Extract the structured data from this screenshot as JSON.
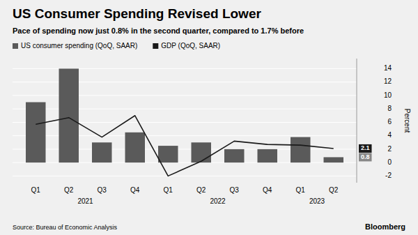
{
  "chart_data": {
    "type": "bar",
    "title": "US Consumer Spending Revised Lower",
    "subtitle": "Pace of spending now just 0.8% in the second quarter, compared to 1.7% before",
    "source": "Source: Bureau of Economic Analysis",
    "credit": "Bloomberg",
    "y_label": "Percent",
    "categories": [
      "Q1",
      "Q2",
      "Q3",
      "Q4",
      "Q1",
      "Q2",
      "Q3",
      "Q4",
      "Q1",
      "Q2"
    ],
    "x_group_labels": [
      "2021",
      "2022",
      "2023"
    ],
    "series": [
      {
        "name": "US consumer spending (QoQ, SAAR)",
        "type": "bar",
        "color": "#5a5a5a",
        "values": [
          9.0,
          14.0,
          3.0,
          4.5,
          2.5,
          3.0,
          2.0,
          2.0,
          3.8,
          0.8
        ]
      },
      {
        "name": "GDP (QoQ, SAAR)",
        "type": "line",
        "color": "#1a1a1a",
        "values": [
          5.7,
          6.7,
          3.8,
          7.0,
          -2.0,
          0.2,
          3.2,
          2.7,
          2.6,
          2.1
        ]
      }
    ],
    "end_labels": [
      {
        "value": 2.1,
        "color": "#1a1a1a"
      },
      {
        "value": 0.8,
        "color": "#888888"
      }
    ],
    "ylim": [
      -3.0,
      15.5
    ],
    "yticks": [
      -2,
      0,
      2,
      4,
      6,
      8,
      10,
      12,
      14
    ],
    "grid": true
  }
}
